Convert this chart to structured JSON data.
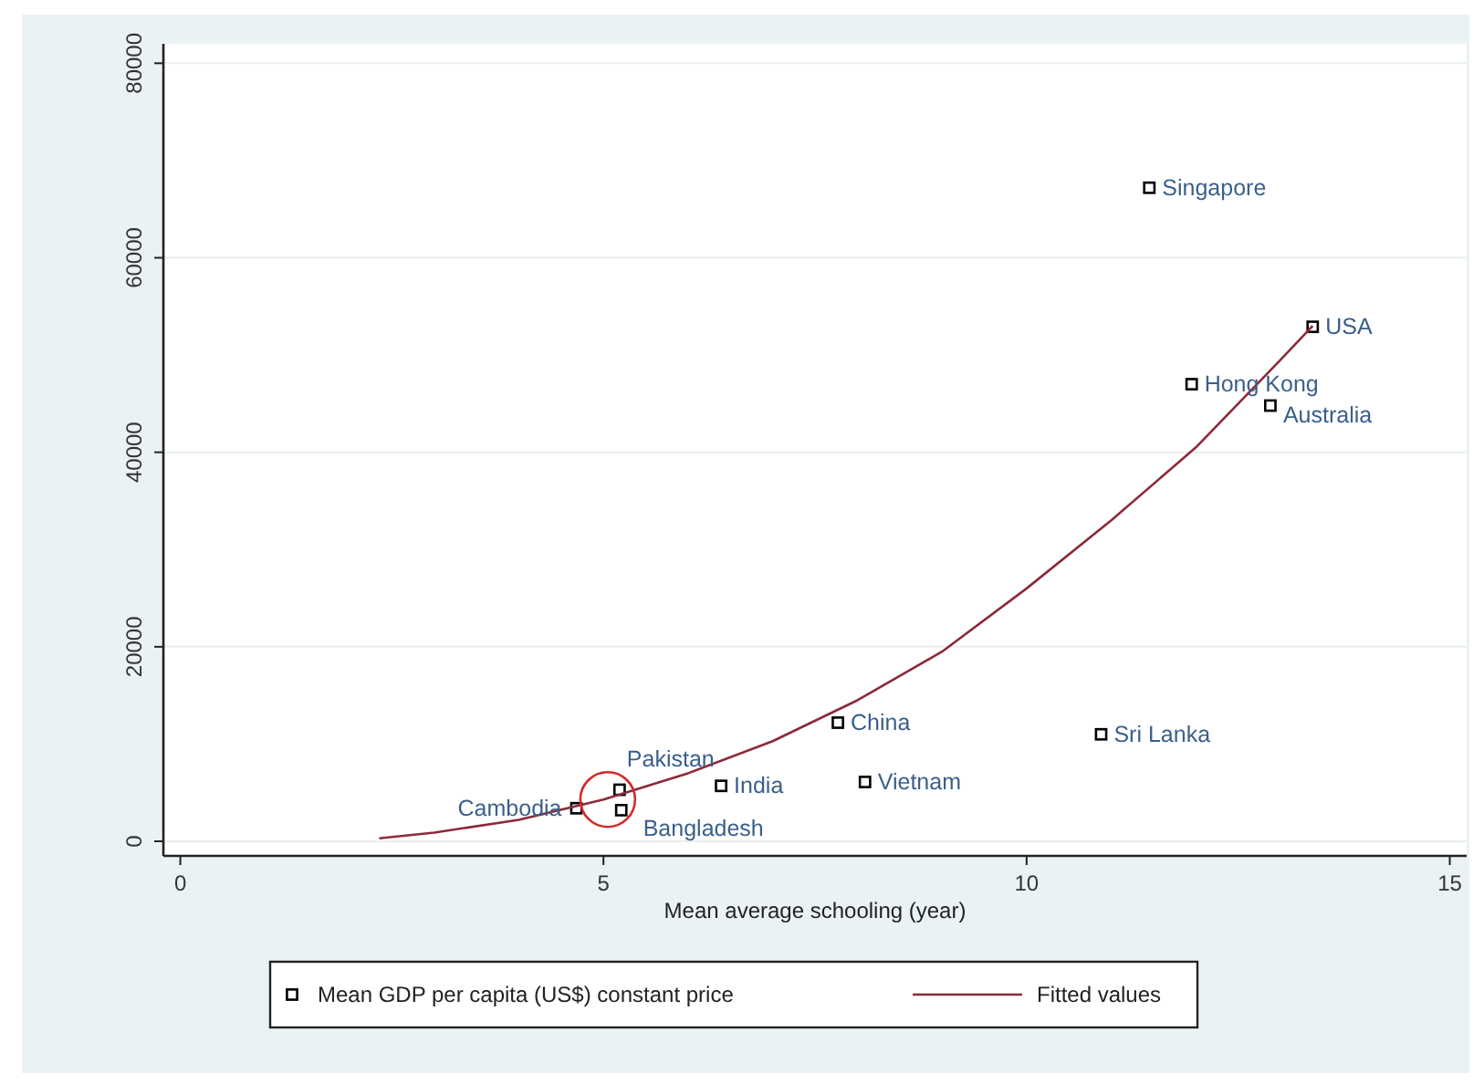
{
  "chart_data": {
    "type": "scatter",
    "xlabel": "Mean average schooling (year)",
    "xlim": [
      -0.2,
      15.2
    ],
    "ylim": [
      -1500,
      82000
    ],
    "xticks": [
      0,
      5,
      10,
      15
    ],
    "yticks": [
      0,
      20000,
      40000,
      60000,
      80000
    ],
    "grid": "y",
    "legend": "bottom",
    "series": [
      {
        "name": "Mean GDP per capita (US$) constant price",
        "color": "#000000",
        "marker": "square",
        "x": [
          11.45,
          13.38,
          11.95,
          12.88,
          10.88,
          7.77,
          8.09,
          6.39,
          5.19,
          5.21,
          4.68
        ],
        "values": [
          67200,
          52900,
          47000,
          44800,
          11000,
          12200,
          6100,
          5700,
          5300,
          3200,
          3400
        ]
      },
      {
        "name": "Fitted values",
        "color": "#8b2a3a",
        "type": "line",
        "line_style": "solid",
        "x": [
          2.35,
          3,
          4,
          5,
          6,
          7,
          8,
          9,
          10,
          11,
          12,
          13,
          13.38
        ],
        "values": [
          300,
          900,
          2200,
          4300,
          7000,
          10300,
          14500,
          19500,
          26000,
          33000,
          40500,
          49500,
          53000
        ]
      }
    ],
    "annotations": [
      {
        "text": "Singapore",
        "x": 11.45,
        "y": 67200
      },
      {
        "text": "USA",
        "x": 13.38,
        "y": 52900
      },
      {
        "text": "Hong Kong",
        "x": 11.95,
        "y": 47000
      },
      {
        "text": "Australia",
        "x": 12.88,
        "y": 44800
      },
      {
        "text": "Sri Lanka",
        "x": 10.88,
        "y": 11000
      },
      {
        "text": "China",
        "x": 7.77,
        "y": 12200
      },
      {
        "text": "Vietnam",
        "x": 8.09,
        "y": 6100
      },
      {
        "text": "India",
        "x": 6.39,
        "y": 5700
      },
      {
        "text": "Pakistan",
        "x": 5.19,
        "y": 5300
      },
      {
        "text": "Bangladesh",
        "x": 5.21,
        "y": 3200
      },
      {
        "text": "Cambodia",
        "x": 4.68,
        "y": 3400
      }
    ]
  }
}
